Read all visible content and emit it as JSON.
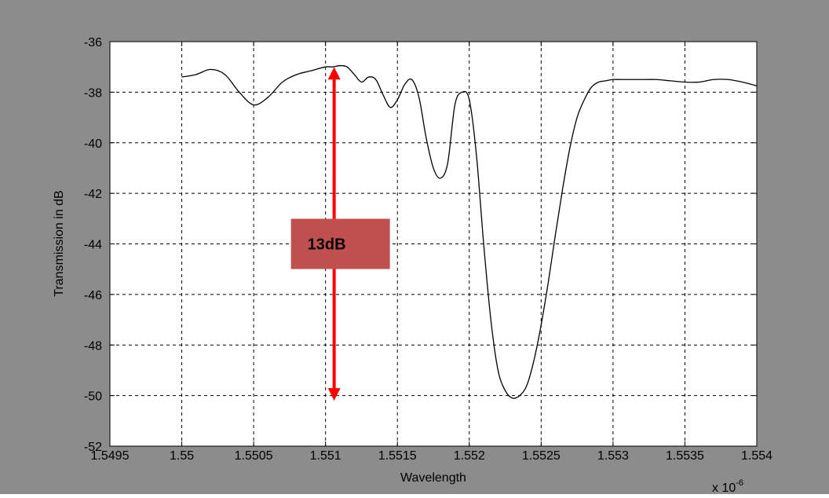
{
  "chart_data": {
    "type": "line",
    "title": "",
    "xlabel": "Wavelength",
    "ylabel": "Transmission in dB",
    "x_multiplier_label": "x 10",
    "x_multiplier_exponent": "-6",
    "xlim": [
      1.5495,
      1.554
    ],
    "ylim": [
      -52,
      -36
    ],
    "xticks": [
      "1.5495",
      "1.55",
      "1.5505",
      "1.551",
      "1.5515",
      "1.552",
      "1.5525",
      "1.553",
      "1.5535",
      "1.554"
    ],
    "yticks": [
      "-36",
      "-38",
      "-40",
      "-42",
      "-44",
      "-46",
      "-48",
      "-50",
      "-52"
    ],
    "grid": true,
    "background_color": "#8c8c8c",
    "plot_color": "#ffffff",
    "line_color": "#000000",
    "series": [
      {
        "x": [
          1.55,
          1.5501,
          1.5502,
          1.5503,
          1.5504,
          1.5505,
          1.5506,
          1.5507,
          1.5508,
          1.5509,
          1.551,
          1.55105,
          1.5511,
          1.55115,
          1.5512,
          1.55125,
          1.5513,
          1.55135,
          1.5514,
          1.55145,
          1.5515,
          1.55155,
          1.5516,
          1.55165,
          1.5517,
          1.55175,
          1.5518,
          1.55185,
          1.5519,
          1.55195,
          1.552,
          1.55205,
          1.5521,
          1.55215,
          1.5522,
          1.55225,
          1.5523,
          1.55235,
          1.5524,
          1.55245,
          1.5525,
          1.55255,
          1.5526,
          1.55265,
          1.5527,
          1.55275,
          1.5528,
          1.55285,
          1.5529,
          1.55295,
          1.553,
          1.5531,
          1.5532,
          1.5533,
          1.5534,
          1.5535,
          1.5536,
          1.5537,
          1.5538,
          1.5539,
          1.554
        ],
        "y": [
          -37.4,
          -37.3,
          -37.1,
          -37.3,
          -38.0,
          -38.5,
          -38.2,
          -37.6,
          -37.3,
          -37.15,
          -37.0,
          -37.0,
          -36.95,
          -37.0,
          -37.3,
          -37.6,
          -37.4,
          -37.5,
          -38.1,
          -38.6,
          -38.3,
          -37.7,
          -37.5,
          -38.2,
          -39.8,
          -41.0,
          -41.4,
          -40.8,
          -38.5,
          -38.0,
          -38.3,
          -40.5,
          -44.0,
          -47.0,
          -49.0,
          -49.8,
          -50.1,
          -50.0,
          -49.6,
          -48.6,
          -47.2,
          -45.5,
          -43.6,
          -41.8,
          -40.2,
          -39.0,
          -38.3,
          -37.8,
          -37.6,
          -37.55,
          -37.5,
          -37.5,
          -37.5,
          -37.5,
          -37.55,
          -37.6,
          -37.6,
          -37.5,
          -37.5,
          -37.6,
          -37.75
        ]
      }
    ],
    "annotation": {
      "label": "13dB",
      "x": 1.55106,
      "y_top": -37.0,
      "y_bottom": -50.2,
      "label_y": -44,
      "arrow_color": "#ff0000",
      "box_color": "#c0504d"
    }
  }
}
